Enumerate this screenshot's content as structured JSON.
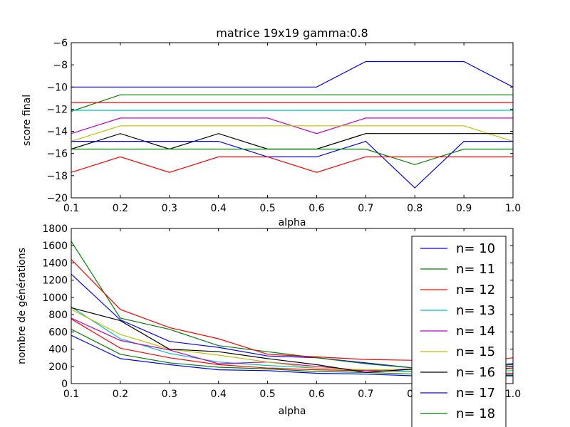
{
  "chart_data": [
    {
      "type": "line",
      "title": "matrice 19x19 gamma:0.8",
      "xlabel": "alpha",
      "ylabel": "score final",
      "xlim": [
        0.1,
        1.0
      ],
      "ylim": [
        -20,
        -6
      ],
      "xticks": [
        "0.1",
        "0.2",
        "0.3",
        "0.4",
        "0.5",
        "0.6",
        "0.7",
        "0.8",
        "0.9",
        "1.0"
      ],
      "yticks": [
        "−20",
        "−18",
        "−16",
        "−14",
        "−12",
        "−10",
        "−8",
        "−6"
      ],
      "grid": false,
      "x": [
        0.1,
        0.2,
        0.3,
        0.4,
        0.5,
        0.6,
        0.7,
        0.8,
        0.9,
        1.0
      ],
      "series": [
        {
          "color": "#0000ff",
          "values": [
            -10,
            -10,
            -10,
            -10,
            -10,
            -10,
            -7.7,
            -7.7,
            -7.7,
            -10
          ]
        },
        {
          "color": "#008000",
          "values": [
            -12.2,
            -10.7,
            -10.7,
            -10.7,
            -10.7,
            -10.7,
            -10.7,
            -10.7,
            -10.7,
            -10.7
          ]
        },
        {
          "color": "#ff0000",
          "values": [
            -11.4,
            -11.4,
            -11.4,
            -11.4,
            -11.4,
            -11.4,
            -11.4,
            -11.4,
            -11.4,
            -11.4
          ]
        },
        {
          "color": "#00bfbf",
          "values": [
            -12.1,
            -12.1,
            -12.1,
            -12.1,
            -12.1,
            -12.1,
            -12.1,
            -12.1,
            -12.1,
            -12.1
          ]
        },
        {
          "color": "#bf00bf",
          "values": [
            -14.2,
            -12.8,
            -12.8,
            -12.8,
            -12.8,
            -14.2,
            -12.8,
            -12.8,
            -12.8,
            -12.8
          ]
        },
        {
          "color": "#bfbf00",
          "values": [
            -14.9,
            -13.5,
            -13.5,
            -13.5,
            -13.5,
            -13.5,
            -13.5,
            -13.5,
            -13.5,
            -14.9
          ]
        },
        {
          "color": "#000000",
          "values": [
            -15.6,
            -14.2,
            -15.6,
            -14.2,
            -15.6,
            -15.6,
            -14.2,
            -14.2,
            -14.2,
            -14.2
          ]
        },
        {
          "color": "#0000ff",
          "values": [
            -14.9,
            -14.9,
            -14.9,
            -14.9,
            -16.3,
            -16.3,
            -14.9,
            -19.1,
            -14.9,
            -14.9
          ]
        },
        {
          "color": "#008000",
          "values": [
            -15.6,
            -15.6,
            -15.6,
            -15.6,
            -15.6,
            -15.6,
            -15.6,
            -17.0,
            -15.6,
            -15.6
          ]
        },
        {
          "color": "#ff0000",
          "values": [
            -17.7,
            -16.3,
            -17.7,
            -16.3,
            -16.3,
            -17.7,
            -16.3,
            -16.3,
            -16.3,
            -16.3
          ]
        }
      ]
    },
    {
      "type": "line",
      "title": "",
      "xlabel": "alpha",
      "ylabel": "nombre de générations",
      "xlim": [
        0.1,
        1.0
      ],
      "ylim": [
        0,
        1800
      ],
      "xticks": [
        "0.1",
        "0.2",
        "0.3",
        "0.4",
        "0.5",
        "0.6",
        "0.7",
        "0.8",
        "0.9",
        "1.0"
      ],
      "yticks": [
        "0",
        "200",
        "400",
        "600",
        "800",
        "1000",
        "1200",
        "1400",
        "1600",
        "1800"
      ],
      "grid": false,
      "legend_position": "right",
      "x": [
        0.1,
        0.2,
        0.3,
        0.4,
        0.5,
        0.6,
        0.7,
        0.8,
        0.9,
        1.0
      ],
      "series": [
        {
          "name": "n= 10",
          "color": "#0000ff",
          "values": [
            560,
            290,
            220,
            160,
            150,
            120,
            110,
            90,
            90,
            90
          ]
        },
        {
          "name": "n= 11",
          "color": "#008000",
          "values": [
            630,
            340,
            240,
            190,
            170,
            140,
            130,
            110,
            100,
            100
          ]
        },
        {
          "name": "n= 12",
          "color": "#ff0000",
          "values": [
            750,
            410,
            300,
            220,
            180,
            160,
            150,
            140,
            120,
            120
          ]
        },
        {
          "name": "n= 13",
          "color": "#00bfbf",
          "values": [
            890,
            520,
            350,
            250,
            210,
            180,
            160,
            140,
            130,
            150
          ]
        },
        {
          "name": "n= 14",
          "color": "#bf00bf",
          "values": [
            760,
            500,
            390,
            230,
            250,
            200,
            150,
            170,
            160,
            180
          ]
        },
        {
          "name": "n= 15",
          "color": "#bfbf00",
          "values": [
            860,
            570,
            400,
            330,
            250,
            180,
            160,
            160,
            150,
            170
          ]
        },
        {
          "name": "n= 16",
          "color": "#000000",
          "values": [
            880,
            730,
            400,
            370,
            290,
            220,
            130,
            170,
            180,
            200
          ]
        },
        {
          "name": "n= 17",
          "color": "#0000ff",
          "values": [
            1270,
            740,
            490,
            420,
            320,
            300,
            240,
            180,
            200,
            230
          ]
        },
        {
          "name": "n= 18",
          "color": "#008000",
          "values": [
            1650,
            760,
            630,
            440,
            370,
            300,
            230,
            180,
            190,
            220
          ]
        },
        {
          "name": "",
          "color": "#ff0000",
          "values": [
            1440,
            860,
            650,
            520,
            340,
            310,
            280,
            270,
            220,
            300
          ]
        }
      ]
    }
  ]
}
